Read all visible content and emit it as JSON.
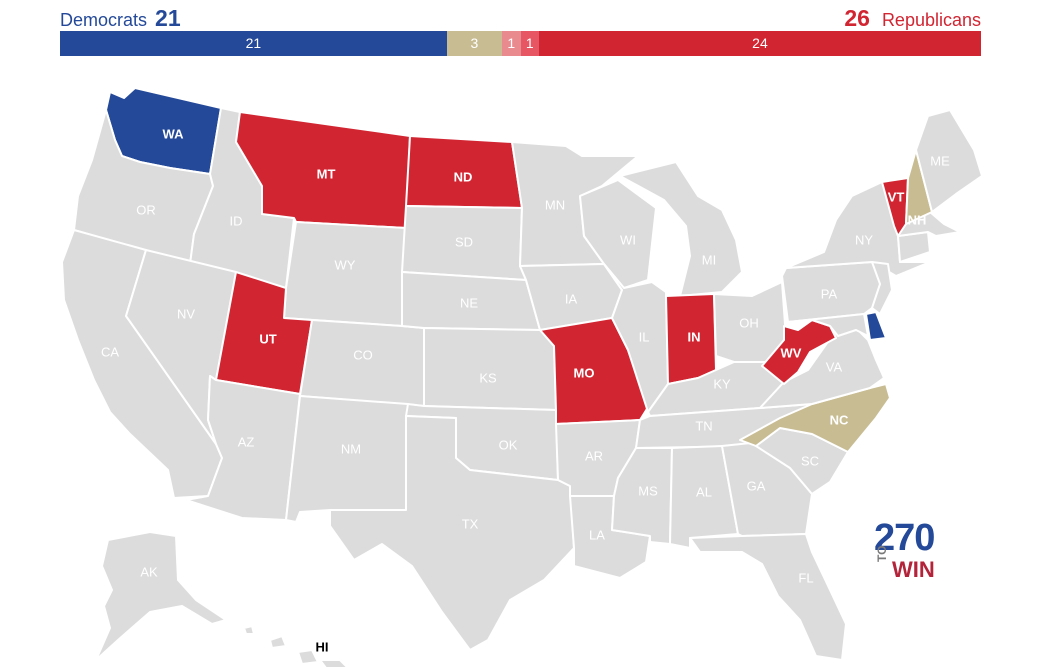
{
  "header": {
    "dem_label": "Democrats",
    "dem_count": "21",
    "rep_label": "Republicans",
    "rep_count": "26"
  },
  "bar": {
    "segments": [
      {
        "label": "21",
        "value": 21,
        "color": "#244999"
      },
      {
        "label": "3",
        "value": 3,
        "color": "#c8bc93"
      },
      {
        "label": "1",
        "value": 1,
        "color": "#e98a8f"
      },
      {
        "label": "1",
        "value": 1,
        "color": "#e65663"
      },
      {
        "label": "24",
        "value": 24,
        "color": "#d22532"
      }
    ]
  },
  "colors": {
    "democrat": "#244999",
    "republican": "#d22532",
    "tossup": "#c8bc93",
    "no_race": "#dcdcdc",
    "border": "#ffffff"
  },
  "states": [
    {
      "abbr": "WA",
      "status": "democrat"
    },
    {
      "abbr": "OR",
      "status": "none"
    },
    {
      "abbr": "CA",
      "status": "none"
    },
    {
      "abbr": "ID",
      "status": "none"
    },
    {
      "abbr": "NV",
      "status": "none"
    },
    {
      "abbr": "MT",
      "status": "republican"
    },
    {
      "abbr": "WY",
      "status": "none"
    },
    {
      "abbr": "UT",
      "status": "republican"
    },
    {
      "abbr": "AZ",
      "status": "none"
    },
    {
      "abbr": "CO",
      "status": "none"
    },
    {
      "abbr": "NM",
      "status": "none"
    },
    {
      "abbr": "ND",
      "status": "republican"
    },
    {
      "abbr": "SD",
      "status": "none"
    },
    {
      "abbr": "NE",
      "status": "none"
    },
    {
      "abbr": "KS",
      "status": "none"
    },
    {
      "abbr": "OK",
      "status": "none"
    },
    {
      "abbr": "TX",
      "status": "none"
    },
    {
      "abbr": "MN",
      "status": "none"
    },
    {
      "abbr": "IA",
      "status": "none"
    },
    {
      "abbr": "MO",
      "status": "republican"
    },
    {
      "abbr": "AR",
      "status": "none"
    },
    {
      "abbr": "LA",
      "status": "none"
    },
    {
      "abbr": "WI",
      "status": "none"
    },
    {
      "abbr": "IL",
      "status": "none"
    },
    {
      "abbr": "MI",
      "status": "none"
    },
    {
      "abbr": "IN",
      "status": "republican"
    },
    {
      "abbr": "OH",
      "status": "none"
    },
    {
      "abbr": "KY",
      "status": "none"
    },
    {
      "abbr": "TN",
      "status": "none"
    },
    {
      "abbr": "MS",
      "status": "none"
    },
    {
      "abbr": "AL",
      "status": "none"
    },
    {
      "abbr": "GA",
      "status": "none"
    },
    {
      "abbr": "FL",
      "status": "none"
    },
    {
      "abbr": "SC",
      "status": "none"
    },
    {
      "abbr": "NC",
      "status": "tossup"
    },
    {
      "abbr": "VA",
      "status": "none"
    },
    {
      "abbr": "WV",
      "status": "republican"
    },
    {
      "abbr": "PA",
      "status": "none"
    },
    {
      "abbr": "NY",
      "status": "none"
    },
    {
      "abbr": "VT",
      "status": "republican"
    },
    {
      "abbr": "NH",
      "status": "tossup"
    },
    {
      "abbr": "ME",
      "status": "none"
    },
    {
      "abbr": "DE",
      "status": "democrat"
    },
    {
      "abbr": "AK",
      "status": "none"
    },
    {
      "abbr": "HI",
      "status": "none"
    }
  ],
  "logo": {
    "number": "270",
    "to": "TO",
    "win": "WIN"
  }
}
